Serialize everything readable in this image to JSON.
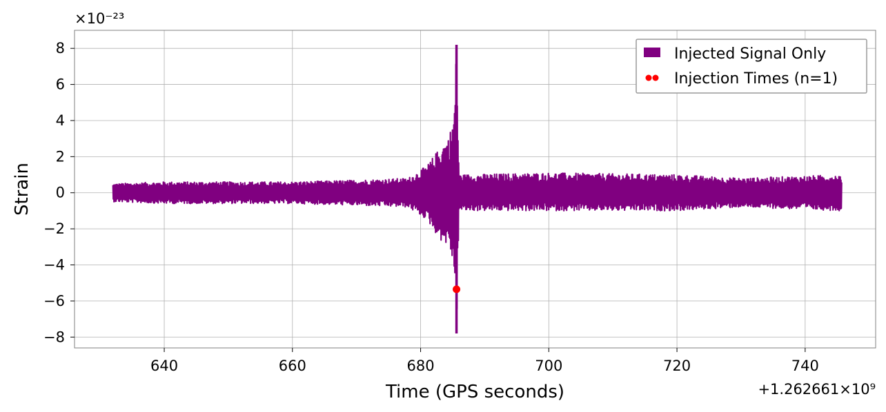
{
  "chart_data": {
    "type": "line",
    "xlabel": "Time (GPS seconds)",
    "ylabel": "Strain",
    "x_offset_label": "+1.262661×10⁹",
    "y_scale_label": "×10⁻²³",
    "xlim": [
      626,
      751
    ],
    "ylim": [
      -8.6,
      9.0
    ],
    "x_ticks": [
      640,
      660,
      680,
      700,
      720,
      740
    ],
    "x_tick_labels": [
      "640",
      "660",
      "680",
      "700",
      "720",
      "740"
    ],
    "y_ticks": [
      -8,
      -6,
      -4,
      -2,
      0,
      2,
      4,
      6,
      8
    ],
    "y_tick_labels": [
      "−8",
      "−6",
      "−4",
      "−2",
      "0",
      "2",
      "4",
      "6",
      "8"
    ],
    "grid": true,
    "legend_position": "top-right",
    "series": [
      {
        "name": "Injected Signal Only",
        "kind": "line",
        "color": "#800080",
        "x_start": 632.0,
        "x_end": 745.7,
        "envelope": [
          {
            "x": 632.0,
            "upper": 0.5,
            "lower": -0.5
          },
          {
            "x": 640.0,
            "upper": 0.6,
            "lower": -0.6
          },
          {
            "x": 650.0,
            "upper": 0.6,
            "lower": -0.6
          },
          {
            "x": 660.0,
            "upper": 0.6,
            "lower": -0.6
          },
          {
            "x": 670.0,
            "upper": 0.7,
            "lower": -0.7
          },
          {
            "x": 678.0,
            "upper": 0.8,
            "lower": -0.8
          },
          {
            "x": 681.0,
            "upper": 1.5,
            "lower": -1.5
          },
          {
            "x": 683.0,
            "upper": 2.5,
            "lower": -2.6
          },
          {
            "x": 684.5,
            "upper": 3.2,
            "lower": -3.0
          },
          {
            "x": 685.2,
            "upper": 4.5,
            "lower": -4.2
          },
          {
            "x": 685.6,
            "upper": 8.2,
            "lower": -7.8
          },
          {
            "x": 686.0,
            "upper": 1.0,
            "lower": -1.0
          },
          {
            "x": 700.0,
            "upper": 1.1,
            "lower": -1.0
          },
          {
            "x": 720.0,
            "upper": 1.0,
            "lower": -1.0
          },
          {
            "x": 730.0,
            "upper": 0.8,
            "lower": -0.8
          },
          {
            "x": 745.7,
            "upper": 1.0,
            "lower": -1.0
          }
        ]
      },
      {
        "name": "Injection Times (n=1)",
        "kind": "scatter",
        "color": "#ff0000",
        "points": [
          {
            "x": 685.6,
            "y": -5.35
          }
        ]
      }
    ]
  }
}
